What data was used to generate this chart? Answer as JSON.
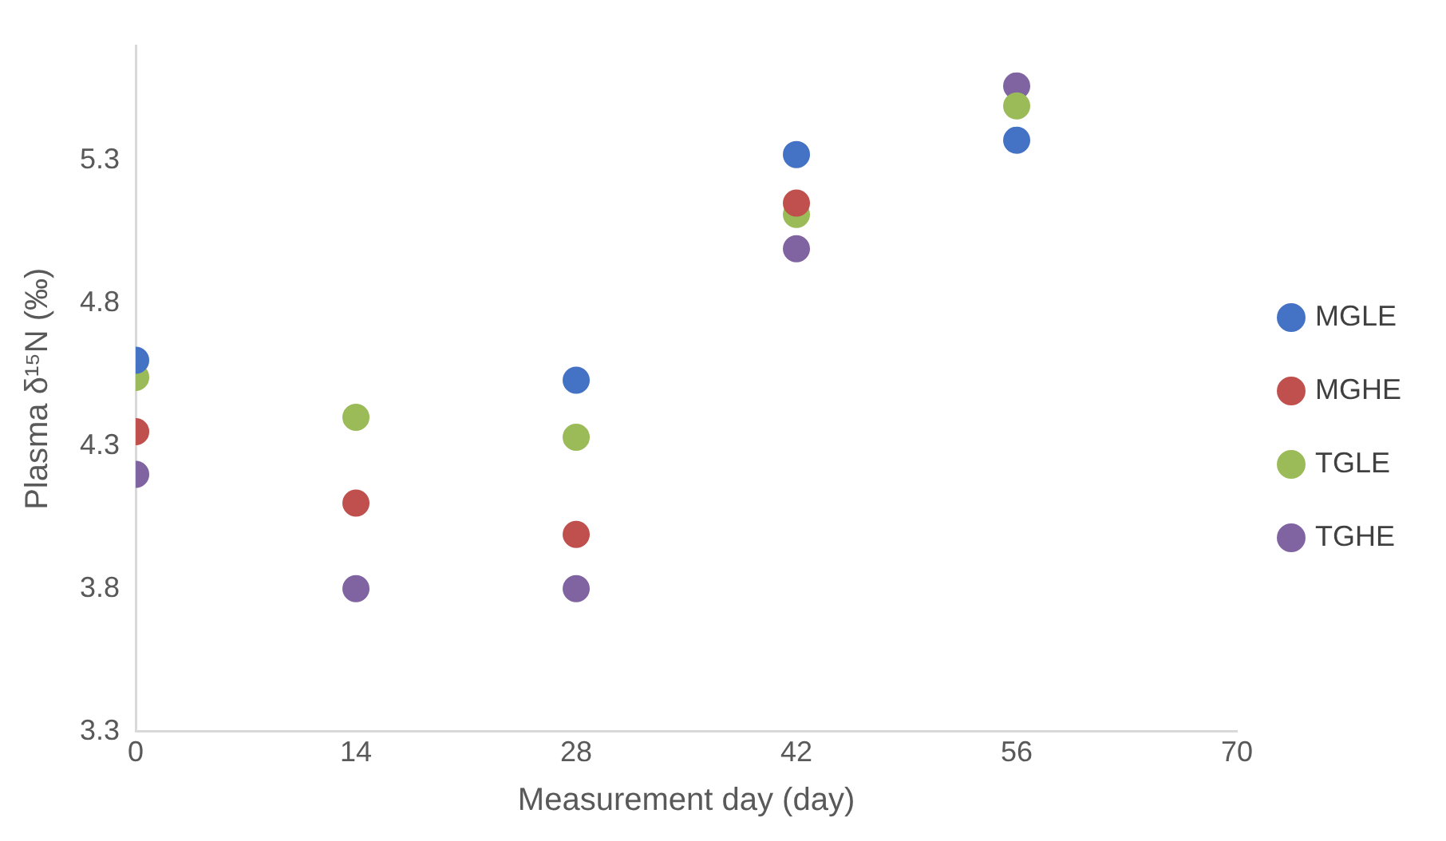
{
  "chart_data": {
    "type": "scatter",
    "xlabel": "Measurement day (day)",
    "ylabel": "Plasma δ¹⁵N (‰)",
    "x": [
      0,
      14,
      28,
      42,
      56
    ],
    "series": [
      {
        "name": "MGLE",
        "color": "#4472c4",
        "values": [
          4.6,
          null,
          4.53,
          5.32,
          5.37
        ]
      },
      {
        "name": "MGHE",
        "color": "#c0504d",
        "values": [
          4.35,
          4.1,
          3.99,
          5.15,
          null
        ]
      },
      {
        "name": "TGLE",
        "color": "#9bbb59",
        "values": [
          4.54,
          4.4,
          4.33,
          5.11,
          5.49
        ]
      },
      {
        "name": "TGHE",
        "color": "#8064a2",
        "values": [
          4.2,
          3.8,
          3.8,
          4.99,
          5.56
        ]
      }
    ],
    "xlim": [
      0,
      70
    ],
    "xticks": [
      0,
      14,
      28,
      42,
      56,
      70
    ],
    "ylim": [
      3.3,
      5.7
    ],
    "yticks": [
      3.3,
      3.8,
      4.3,
      4.8,
      5.3
    ],
    "grid": false,
    "legend": "right",
    "marker": "circle"
  }
}
